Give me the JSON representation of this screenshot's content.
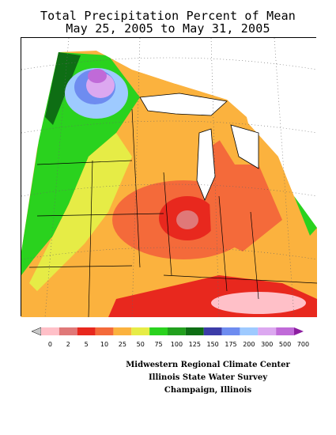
{
  "title_line1": "Total Precipitation Percent of Mean",
  "title_line2": "May 25, 2005 to May 31, 2005",
  "legend": {
    "labels": [
      "0",
      "2",
      "5",
      "10",
      "25",
      "50",
      "75",
      "100",
      "125",
      "150",
      "175",
      "200",
      "300",
      "500",
      "700"
    ],
    "colors": [
      "#c8c8c8",
      "#ffc0c8",
      "#e07878",
      "#e8281e",
      "#f46a3a",
      "#fbb23e",
      "#e6ec46",
      "#2ad21e",
      "#22a01e",
      "#0e6e14",
      "#3c3ca8",
      "#6e8cf0",
      "#9ecaff",
      "#dca8f0",
      "#c06ad8",
      "#8c1ea0"
    ]
  },
  "map": {
    "description_colors": {
      "no_data": "#ffffff",
      "lakes": "#ffffff"
    }
  },
  "credits": {
    "line1": "Midwestern Regional Climate Center",
    "line2": "Illinois State Water Survey",
    "line3": "Champaign, Illinois"
  }
}
